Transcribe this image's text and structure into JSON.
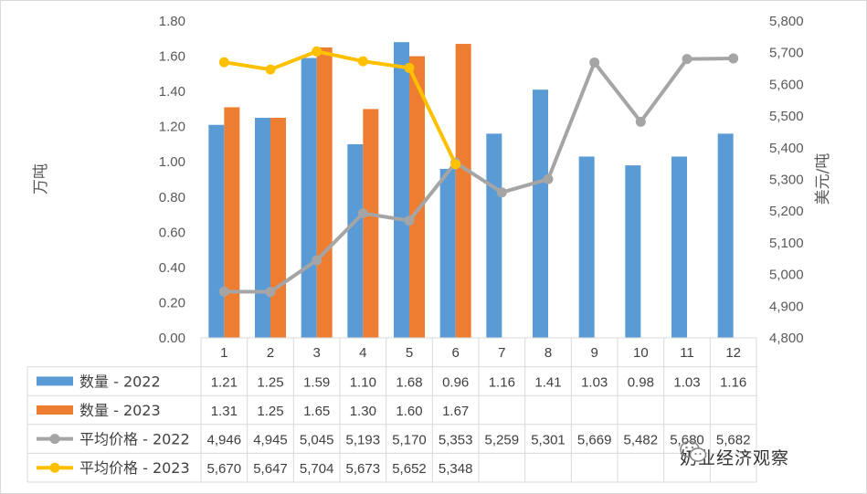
{
  "chart_data": {
    "type": "bar+line",
    "categories": [
      "1",
      "2",
      "3",
      "4",
      "5",
      "6",
      "7",
      "8",
      "9",
      "10",
      "11",
      "12"
    ],
    "left_axis": {
      "label": "万吨",
      "ylim": [
        0,
        1.8
      ],
      "ticks": [
        "0.00",
        "0.20",
        "0.40",
        "0.60",
        "0.80",
        "1.00",
        "1.20",
        "1.40",
        "1.60",
        "1.80"
      ]
    },
    "right_axis": {
      "label": "美元/吨",
      "ylim": [
        4800,
        5800
      ],
      "ticks": [
        "4,800",
        "4,900",
        "5,000",
        "5,100",
        "5,200",
        "5,300",
        "5,400",
        "5,500",
        "5,600",
        "5,700",
        "5,800"
      ]
    },
    "series": [
      {
        "name": "数量 - 2022",
        "kind": "bar",
        "axis": "left",
        "color": "#5b9bd5",
        "values": [
          1.21,
          1.25,
          1.59,
          1.1,
          1.68,
          0.96,
          1.16,
          1.41,
          1.03,
          0.98,
          1.03,
          1.16
        ],
        "labels": [
          "1.21",
          "1.25",
          "1.59",
          "1.10",
          "1.68",
          "0.96",
          "1.16",
          "1.41",
          "1.03",
          "0.98",
          "1.03",
          "1.16"
        ]
      },
      {
        "name": "数量 - 2023",
        "kind": "bar",
        "axis": "left",
        "color": "#ed7d31",
        "values": [
          1.31,
          1.25,
          1.65,
          1.3,
          1.6,
          1.67,
          null,
          null,
          null,
          null,
          null,
          null
        ],
        "labels": [
          "1.31",
          "1.25",
          "1.65",
          "1.30",
          "1.60",
          "1.67",
          "",
          "",
          "",
          "",
          "",
          ""
        ]
      },
      {
        "name": "平均价格 - 2022",
        "kind": "line",
        "axis": "right",
        "color": "#a5a5a5",
        "values": [
          4946,
          4945,
          5045,
          5193,
          5170,
          5353,
          5259,
          5301,
          5669,
          5482,
          5680,
          5682
        ],
        "labels": [
          "4,946",
          "4,945",
          "5,045",
          "5,193",
          "5,170",
          "5,353",
          "5,259",
          "5,301",
          "5,669",
          "5,482",
          "5,680",
          "5,682"
        ]
      },
      {
        "name": "平均价格 - 2023",
        "kind": "line",
        "axis": "right",
        "color": "#ffc000",
        "values": [
          5670,
          5647,
          5704,
          5673,
          5652,
          5348,
          null,
          null,
          null,
          null,
          null,
          null
        ],
        "labels": [
          "5,670",
          "5,647",
          "5,704",
          "5,673",
          "5,652",
          "5,348",
          "",
          "",
          "",
          "",
          "",
          ""
        ]
      }
    ],
    "grid": false,
    "legend": "data-table"
  },
  "watermark": {
    "text": "奶业经济观察",
    "icon": "wechat-icon"
  }
}
